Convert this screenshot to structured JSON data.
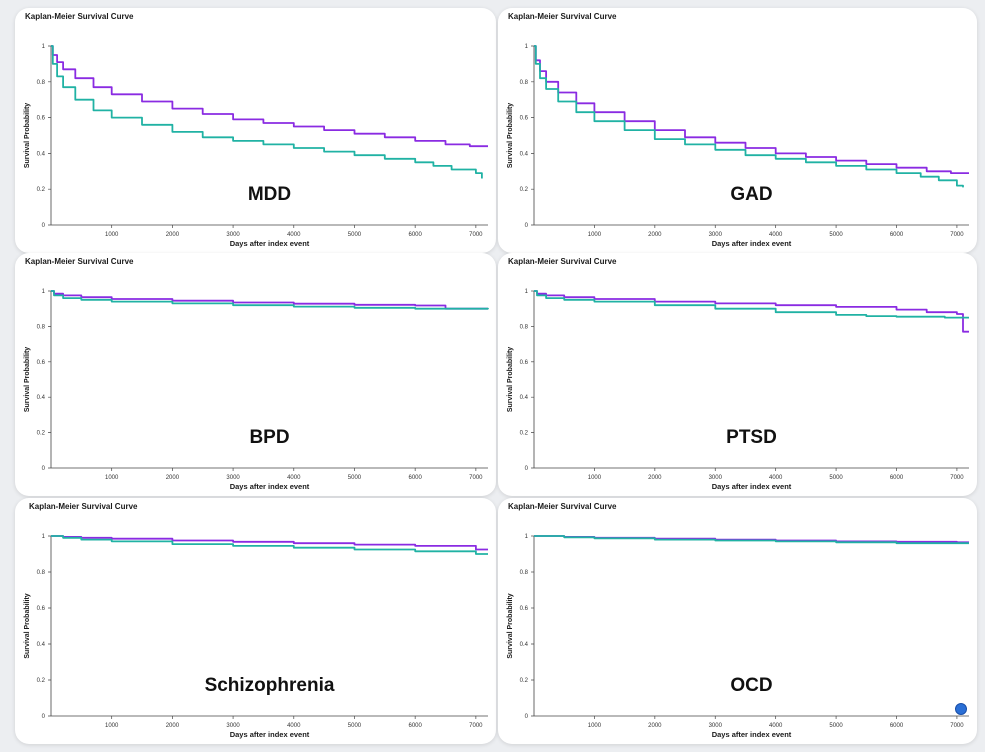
{
  "colors": {
    "series_a": "#8a2be2",
    "series_b": "#20b2a4"
  },
  "chart_data": [
    {
      "type": "line",
      "title": "Kaplan-Meier Survival Curve",
      "annotation": "MDD",
      "xlabel": "Days after index event",
      "ylabel": "Survival Probability",
      "xlim": [
        0,
        7200
      ],
      "ylim": [
        0,
        1
      ],
      "xticks": [
        1000,
        2000,
        3000,
        4000,
        5000,
        6000,
        7000
      ],
      "yticks": [
        0,
        0.2,
        0.4,
        0.6,
        0.8,
        1
      ],
      "ytick_labels": [
        "0",
        "0.2",
        "0.4",
        "0.6",
        "0.8",
        "1"
      ],
      "grid": false,
      "series": [
        {
          "color": "#8a2be2",
          "x": [
            0,
            30,
            100,
            200,
            400,
            700,
            1000,
            1500,
            2000,
            2500,
            3000,
            3500,
            4000,
            4500,
            5000,
            5500,
            6000,
            6500,
            6900,
            7200
          ],
          "y": [
            1,
            0.95,
            0.91,
            0.87,
            0.82,
            0.77,
            0.73,
            0.69,
            0.65,
            0.62,
            0.59,
            0.57,
            0.55,
            0.53,
            0.51,
            0.49,
            0.47,
            0.45,
            0.44,
            0.44
          ]
        },
        {
          "color": "#20b2a4",
          "x": [
            0,
            30,
            100,
            200,
            400,
            700,
            1000,
            1500,
            2000,
            2500,
            3000,
            3500,
            4000,
            4500,
            5000,
            5500,
            6000,
            6300,
            6600,
            7000,
            7100
          ],
          "y": [
            1,
            0.9,
            0.83,
            0.77,
            0.7,
            0.64,
            0.6,
            0.56,
            0.52,
            0.49,
            0.47,
            0.45,
            0.43,
            0.41,
            0.39,
            0.37,
            0.35,
            0.33,
            0.31,
            0.29,
            0.26
          ]
        }
      ]
    },
    {
      "type": "line",
      "title": "Kaplan-Meier Survival Curve",
      "annotation": "GAD",
      "xlabel": "Days after index event",
      "ylabel": "Survival Probability",
      "xlim": [
        0,
        7200
      ],
      "ylim": [
        0,
        1
      ],
      "xticks": [
        1000,
        2000,
        3000,
        4000,
        5000,
        6000,
        7000
      ],
      "yticks": [
        0,
        0.2,
        0.4,
        0.6,
        0.8,
        1
      ],
      "ytick_labels": [
        "0",
        "0.2",
        "0.4",
        "0.6",
        "0.8",
        "1"
      ],
      "grid": false,
      "series": [
        {
          "color": "#8a2be2",
          "x": [
            0,
            30,
            100,
            200,
            400,
            700,
            1000,
            1500,
            2000,
            2500,
            3000,
            3500,
            4000,
            4500,
            5000,
            5500,
            6000,
            6500,
            6900,
            7200
          ],
          "y": [
            1,
            0.92,
            0.86,
            0.8,
            0.74,
            0.68,
            0.63,
            0.58,
            0.53,
            0.49,
            0.46,
            0.43,
            0.4,
            0.38,
            0.36,
            0.34,
            0.32,
            0.3,
            0.29,
            0.29
          ]
        },
        {
          "color": "#20b2a4",
          "x": [
            0,
            30,
            100,
            200,
            400,
            700,
            1000,
            1500,
            2000,
            2500,
            3000,
            3500,
            4000,
            4500,
            5000,
            5500,
            6000,
            6400,
            6700,
            7000,
            7100
          ],
          "y": [
            1,
            0.9,
            0.82,
            0.76,
            0.69,
            0.63,
            0.58,
            0.53,
            0.48,
            0.45,
            0.42,
            0.39,
            0.37,
            0.35,
            0.33,
            0.31,
            0.29,
            0.27,
            0.25,
            0.22,
            0.21
          ]
        }
      ]
    },
    {
      "type": "line",
      "title": "Kaplan-Meier Survival Curve",
      "annotation": "BPD",
      "xlabel": "Days after index event",
      "ylabel": "Survival Probability",
      "xlim": [
        0,
        7200
      ],
      "ylim": [
        0,
        1
      ],
      "xticks": [
        1000,
        2000,
        3000,
        4000,
        5000,
        6000,
        7000
      ],
      "yticks": [
        0,
        0.2,
        0.4,
        0.6,
        0.8,
        1
      ],
      "ytick_labels": [
        "0",
        "0.2",
        "0.4",
        "0.6",
        "0.8",
        "1"
      ],
      "grid": false,
      "series": [
        {
          "color": "#8a2be2",
          "x": [
            0,
            50,
            200,
            500,
            1000,
            2000,
            3000,
            4000,
            5000,
            6000,
            6500,
            7200
          ],
          "y": [
            1,
            0.985,
            0.975,
            0.965,
            0.955,
            0.945,
            0.935,
            0.928,
            0.922,
            0.918,
            0.9,
            0.9
          ]
        },
        {
          "color": "#20b2a4",
          "x": [
            0,
            50,
            200,
            500,
            1000,
            2000,
            3000,
            4000,
            5000,
            6000,
            7200
          ],
          "y": [
            1,
            0.975,
            0.96,
            0.95,
            0.94,
            0.93,
            0.92,
            0.912,
            0.905,
            0.9,
            0.897
          ]
        }
      ]
    },
    {
      "type": "line",
      "title": "Kaplan-Meier Survival Curve",
      "annotation": "PTSD",
      "xlabel": "Days after index event",
      "ylabel": "Survival Probability",
      "xlim": [
        0,
        7200
      ],
      "ylim": [
        0,
        1
      ],
      "xticks": [
        1000,
        2000,
        3000,
        4000,
        5000,
        6000,
        7000
      ],
      "yticks": [
        0,
        0.2,
        0.4,
        0.6,
        0.8,
        1
      ],
      "ytick_labels": [
        "0",
        "0.2",
        "0.4",
        "0.6",
        "0.8",
        "1"
      ],
      "grid": false,
      "series": [
        {
          "color": "#8a2be2",
          "x": [
            0,
            50,
            200,
            500,
            1000,
            2000,
            3000,
            4000,
            5000,
            6000,
            6500,
            7000,
            7100,
            7200
          ],
          "y": [
            1,
            0.985,
            0.975,
            0.965,
            0.955,
            0.94,
            0.93,
            0.92,
            0.91,
            0.895,
            0.88,
            0.87,
            0.77,
            0.77
          ]
        },
        {
          "color": "#20b2a4",
          "x": [
            0,
            50,
            200,
            500,
            1000,
            2000,
            3000,
            4000,
            5000,
            5500,
            6000,
            6800,
            7100,
            7200
          ],
          "y": [
            1,
            0.975,
            0.96,
            0.95,
            0.94,
            0.92,
            0.9,
            0.88,
            0.865,
            0.858,
            0.855,
            0.85,
            0.85,
            0.85
          ]
        }
      ]
    },
    {
      "type": "line",
      "title": "Kaplan-Meier Survival Curve",
      "annotation": "Schizophrenia",
      "xlabel": "Days after index event",
      "ylabel": "Survival Probability",
      "xlim": [
        0,
        7200
      ],
      "ylim": [
        0,
        1
      ],
      "xticks": [
        1000,
        2000,
        3000,
        4000,
        5000,
        6000,
        7000
      ],
      "yticks": [
        0,
        0.2,
        0.4,
        0.6,
        0.8,
        1
      ],
      "ytick_labels": [
        "0",
        "0.2",
        "0.4",
        "0.6",
        "0.8",
        "1"
      ],
      "grid": false,
      "series": [
        {
          "color": "#8a2be2",
          "x": [
            0,
            200,
            500,
            1000,
            2000,
            3000,
            4000,
            5000,
            6000,
            7000,
            7200
          ],
          "y": [
            1,
            0.995,
            0.99,
            0.985,
            0.975,
            0.968,
            0.96,
            0.952,
            0.945,
            0.925,
            0.925
          ]
        },
        {
          "color": "#20b2a4",
          "x": [
            0,
            200,
            500,
            1000,
            2000,
            3000,
            4000,
            5000,
            6000,
            7000,
            7200
          ],
          "y": [
            1,
            0.99,
            0.98,
            0.97,
            0.955,
            0.945,
            0.935,
            0.925,
            0.915,
            0.9,
            0.9
          ]
        }
      ]
    },
    {
      "type": "line",
      "title": "Kaplan-Meier Survival Curve",
      "annotation": "OCD",
      "xlabel": "Days after index event",
      "ylabel": "Survival Probability",
      "xlim": [
        0,
        7200
      ],
      "ylim": [
        0,
        1
      ],
      "xticks": [
        1000,
        2000,
        3000,
        4000,
        5000,
        6000,
        7000
      ],
      "yticks": [
        0,
        0.2,
        0.4,
        0.6,
        0.8,
        1
      ],
      "ytick_labels": [
        "0",
        "0.2",
        "0.4",
        "0.6",
        "0.8",
        "1"
      ],
      "grid": false,
      "series": [
        {
          "color": "#8a2be2",
          "x": [
            0,
            500,
            1000,
            2000,
            3000,
            4000,
            5000,
            6000,
            7000,
            7200
          ],
          "y": [
            1,
            0.995,
            0.99,
            0.985,
            0.98,
            0.975,
            0.97,
            0.968,
            0.965,
            0.965
          ]
        },
        {
          "color": "#20b2a4",
          "x": [
            0,
            500,
            1000,
            2000,
            3000,
            4000,
            5000,
            6000,
            7000,
            7200
          ],
          "y": [
            1,
            0.993,
            0.987,
            0.98,
            0.975,
            0.97,
            0.965,
            0.96,
            0.96,
            0.96
          ]
        }
      ]
    }
  ]
}
